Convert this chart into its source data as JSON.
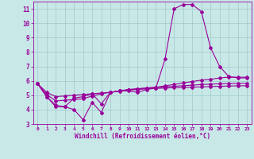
{
  "x": [
    0,
    1,
    2,
    3,
    4,
    5,
    6,
    7,
    8,
    9,
    10,
    11,
    12,
    13,
    14,
    15,
    16,
    17,
    18,
    19,
    20,
    21,
    22,
    23
  ],
  "line1": [
    5.8,
    4.9,
    4.2,
    4.2,
    4.0,
    3.3,
    4.5,
    3.8,
    5.2,
    5.3,
    5.3,
    5.2,
    5.4,
    5.5,
    7.5,
    11.0,
    11.3,
    11.3,
    10.8,
    8.3,
    7.0,
    6.3,
    6.2,
    6.2
  ],
  "line2": [
    5.8,
    4.9,
    4.3,
    4.2,
    4.8,
    4.9,
    5.1,
    4.4,
    5.2,
    5.3,
    5.4,
    5.45,
    5.5,
    5.55,
    5.65,
    5.75,
    5.85,
    5.95,
    6.05,
    6.1,
    6.2,
    6.25,
    6.25,
    6.25
  ],
  "line3": [
    5.8,
    5.05,
    4.6,
    4.65,
    4.7,
    4.75,
    4.95,
    5.1,
    5.2,
    5.3,
    5.38,
    5.44,
    5.5,
    5.54,
    5.58,
    5.62,
    5.66,
    5.7,
    5.74,
    5.77,
    5.79,
    5.81,
    5.82,
    5.83
  ],
  "line4": [
    5.8,
    5.2,
    4.9,
    4.95,
    5.0,
    5.05,
    5.1,
    5.15,
    5.2,
    5.28,
    5.35,
    5.4,
    5.44,
    5.47,
    5.5,
    5.52,
    5.54,
    5.56,
    5.58,
    5.6,
    5.62,
    5.64,
    5.65,
    5.66
  ],
  "color": "#990099",
  "bg_color": "#c8e8e8",
  "grid_color": "#a0c8c8",
  "xlabel": "Windchill (Refroidissement éolien,°C)",
  "ylim": [
    3.0,
    11.5
  ],
  "xlim": [
    -0.5,
    23.5
  ],
  "yticks": [
    3,
    4,
    5,
    6,
    7,
    8,
    9,
    10,
    11
  ],
  "xticks": [
    0,
    1,
    2,
    3,
    4,
    5,
    6,
    7,
    8,
    9,
    10,
    11,
    12,
    13,
    14,
    15,
    16,
    17,
    18,
    19,
    20,
    21,
    22,
    23
  ],
  "markersize": 2.0,
  "linewidth": 0.8
}
